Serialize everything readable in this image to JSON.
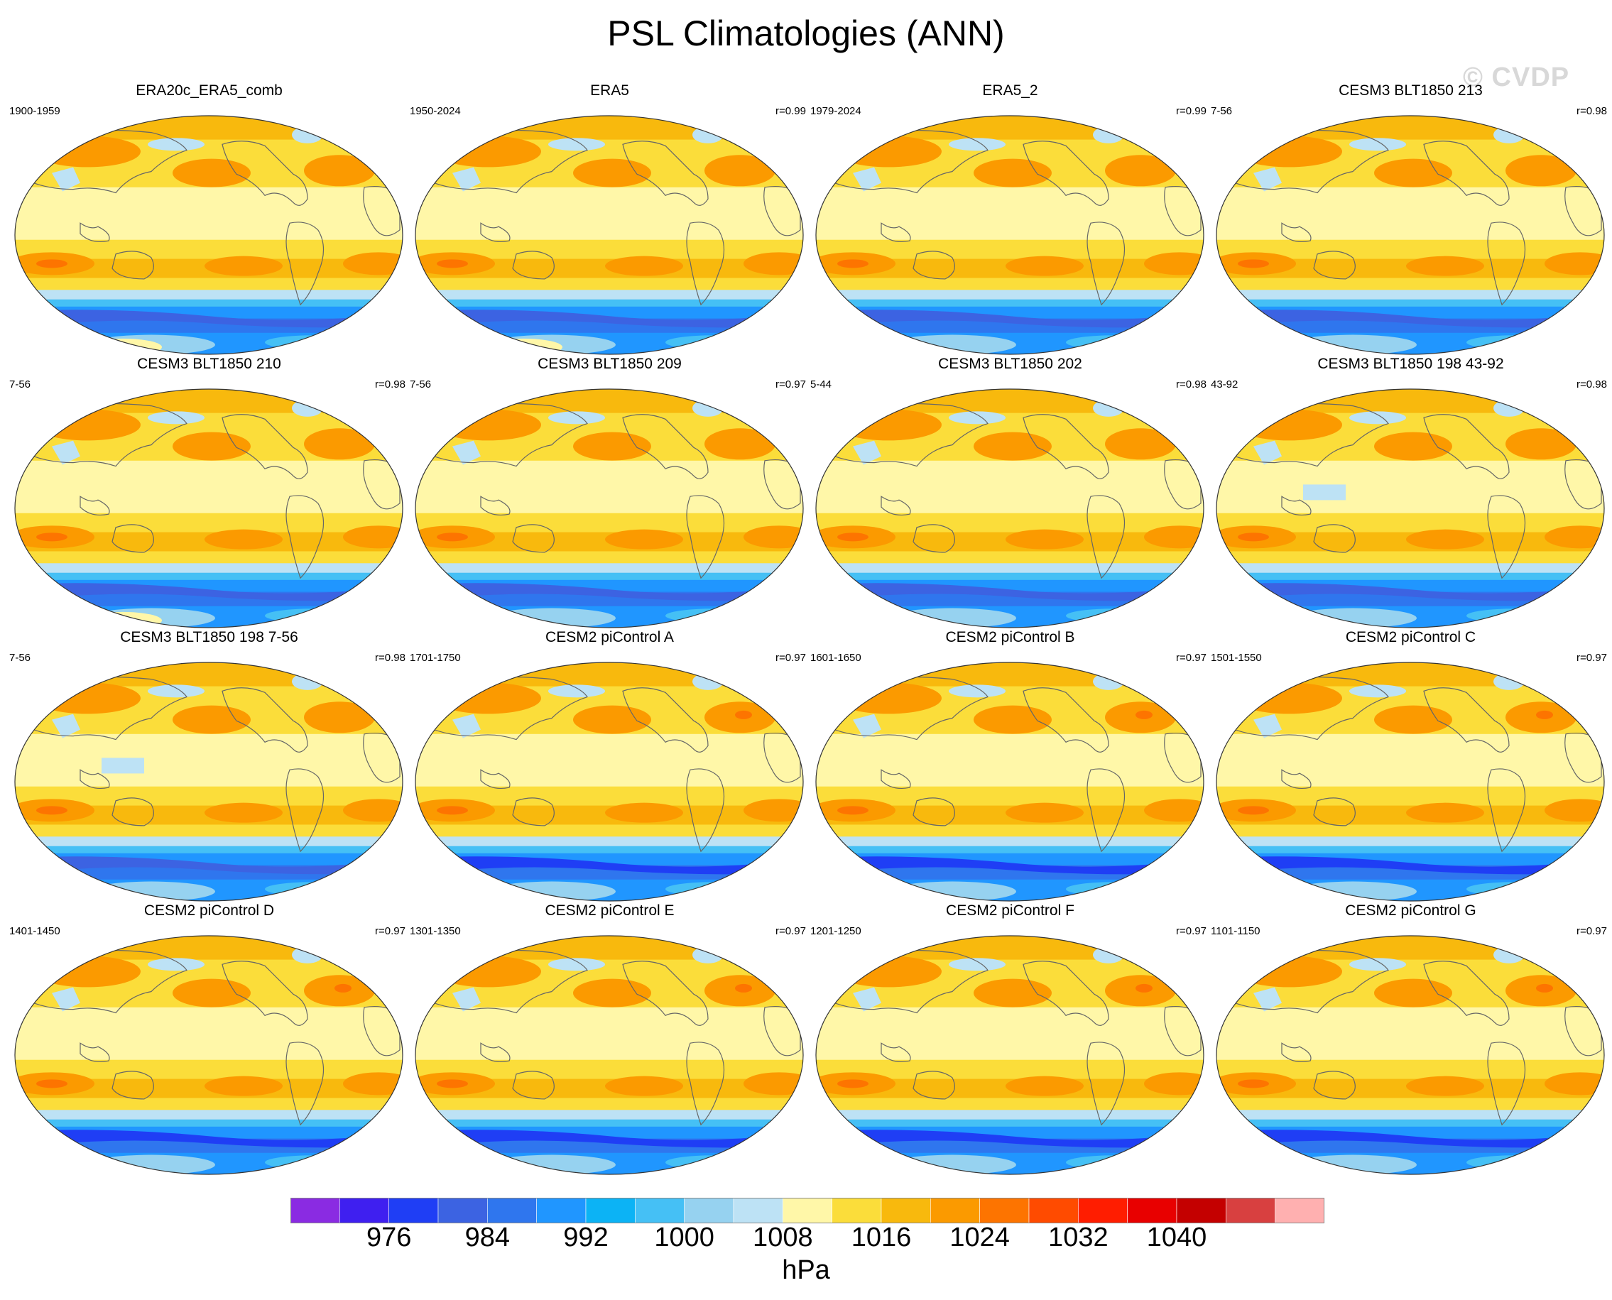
{
  "title": "PSL Climatologies (ANN)",
  "watermark": "© CVDP",
  "units": "hPa",
  "colorbar": {
    "colors": [
      "#8a2be2",
      "#3f1ff0",
      "#1f3ef5",
      "#3c63e2",
      "#2f76ee",
      "#2096ff",
      "#0cb3f5",
      "#45c0f5",
      "#96d2f0",
      "#bde2f5",
      "#fff7a8",
      "#fbdd3a",
      "#f8b90d",
      "#fb9a00",
      "#fd7400",
      "#ff4b00",
      "#ff1d00",
      "#e80000",
      "#c40000",
      "#d84040",
      "#ffb0b0"
    ],
    "labels": [
      "976",
      "984",
      "992",
      "1000",
      "1008",
      "1016",
      "1024",
      "1032",
      "1040"
    ]
  },
  "panels": [
    {
      "title": "ERA20c_ERA5_comb",
      "period": "1900-1959",
      "corr": "",
      "variant": "a"
    },
    {
      "title": "ERA5",
      "period": "1950-2024",
      "corr": "r=0.99",
      "variant": "a"
    },
    {
      "title": "ERA5_2",
      "period": "1979-2024",
      "corr": "r=0.99",
      "variant": "b"
    },
    {
      "title": "CESM3 BLT1850 213",
      "period": "7-56",
      "corr": "r=0.98",
      "variant": "b"
    },
    {
      "title": "CESM3 BLT1850 210",
      "period": "7-56",
      "corr": "r=0.98",
      "variant": "a"
    },
    {
      "title": "CESM3 BLT1850 209",
      "period": "7-56",
      "corr": "r=0.97",
      "variant": "b"
    },
    {
      "title": "CESM3 BLT1850 202",
      "period": "5-44",
      "corr": "r=0.98",
      "variant": "b"
    },
    {
      "title": "CESM3 BLT1850 198 43-92",
      "period": "43-92",
      "corr": "r=0.98",
      "variant": "c"
    },
    {
      "title": "CESM3 BLT1850 198 7-56",
      "period": "7-56",
      "corr": "r=0.98",
      "variant": "c"
    },
    {
      "title": "CESM2 piControl A",
      "period": "1701-1750",
      "corr": "r=0.97",
      "variant": "d"
    },
    {
      "title": "CESM2 piControl B",
      "period": "1601-1650",
      "corr": "r=0.97",
      "variant": "d"
    },
    {
      "title": "CESM2 piControl C",
      "period": "1501-1550",
      "corr": "r=0.97",
      "variant": "d"
    },
    {
      "title": "CESM2 piControl D",
      "period": "1401-1450",
      "corr": "r=0.97",
      "variant": "d"
    },
    {
      "title": "CESM2 piControl E",
      "period": "1301-1350",
      "corr": "r=0.97",
      "variant": "d"
    },
    {
      "title": "CESM2 piControl F",
      "period": "1201-1250",
      "corr": "r=0.97",
      "variant": "d"
    },
    {
      "title": "CESM2 piControl G",
      "period": "1101-1150",
      "corr": "r=0.97",
      "variant": "d"
    }
  ]
}
